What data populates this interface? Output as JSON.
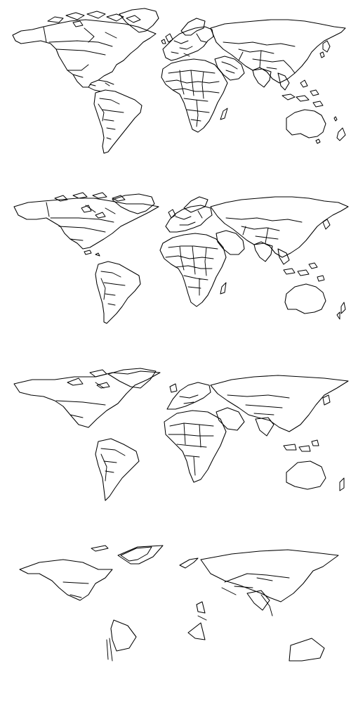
{
  "figure": {
    "panel_count": 4,
    "line_color": "#000000",
    "background_color": "#ffffff",
    "panels": [
      {
        "id": "panel-1",
        "detail_level": "full"
      },
      {
        "id": "panel-2",
        "detail_level": "medium"
      },
      {
        "id": "panel-3",
        "detail_level": "low"
      },
      {
        "id": "panel-4",
        "detail_level": "minimal"
      }
    ]
  }
}
